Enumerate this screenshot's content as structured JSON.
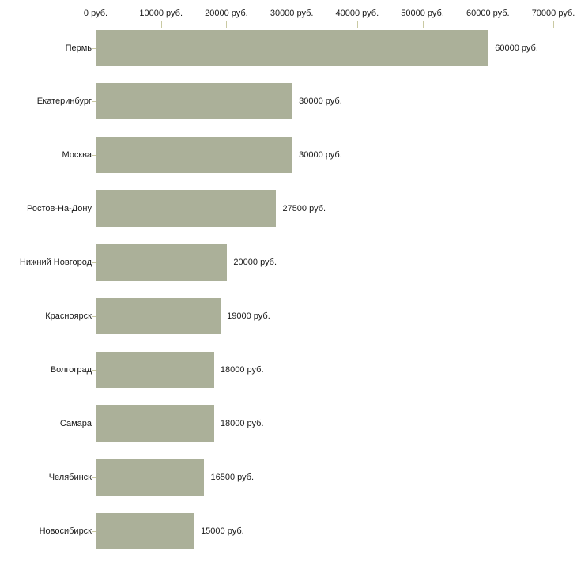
{
  "chart_data": {
    "type": "bar",
    "orientation": "horizontal",
    "title": "",
    "xlabel": "",
    "ylabel": "",
    "unit": "руб.",
    "categories": [
      "Пермь",
      "Екатеринбург",
      "Москва",
      "Ростов-На-Дону",
      "Нижний Новгород",
      "Красноярск",
      "Волгоград",
      "Самара",
      "Челябинск",
      "Новосибирск"
    ],
    "values": [
      60000,
      30000,
      30000,
      27500,
      20000,
      19000,
      18000,
      18000,
      16500,
      15000
    ],
    "value_labels": [
      "60000 руб.",
      "30000 руб.",
      "30000 руб.",
      "27500 руб.",
      "20000 руб.",
      "19000 руб.",
      "18000 руб.",
      "18000 руб.",
      "16500 руб.",
      "15000 руб."
    ],
    "x_axis": {
      "position": "top",
      "min": 0,
      "max": 70000,
      "tick_values": [
        0,
        10000,
        20000,
        30000,
        40000,
        50000,
        60000,
        70000
      ],
      "tick_labels": [
        "0 руб.",
        "10000 руб.",
        "20000 руб.",
        "30000 руб.",
        "40000 руб.",
        "50000 руб.",
        "60000 руб.",
        "70000 руб."
      ]
    },
    "grid": false,
    "legend": "none",
    "colors": {
      "bar": "#abb099",
      "axis_line": "#b6b6b6",
      "tick_mark": "#c9c9a2",
      "text": "#1a1a1a",
      "background": "#ffffff"
    }
  }
}
